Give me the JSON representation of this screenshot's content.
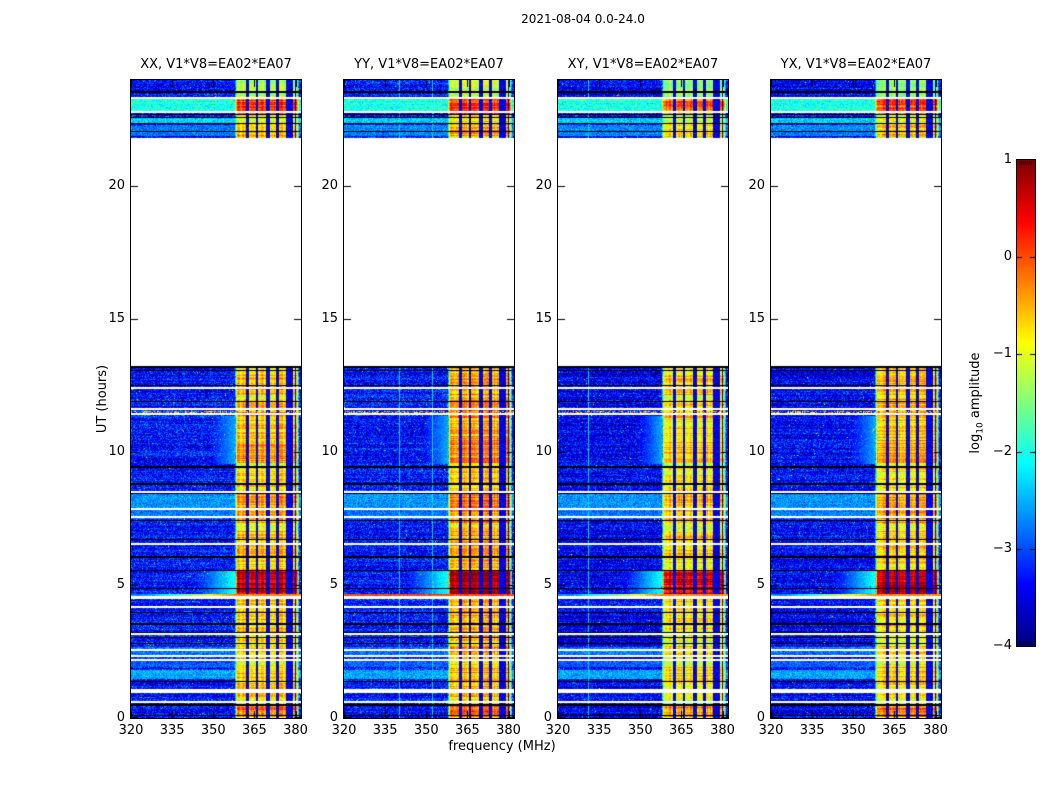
{
  "chart_data": {
    "type": "heatmap",
    "subtype": "dynamic-spectrum-spectrogram",
    "title": "2021-08-04 0.0-24.0",
    "xlabel": "frequency (MHz)",
    "ylabel": "UT (hours)",
    "x_range_mhz": [
      320,
      382
    ],
    "y_range_hours": [
      0,
      24
    ],
    "x_ticks": [
      "320",
      "335",
      "350",
      "365",
      "380"
    ],
    "y_ticks": [
      "0",
      "5",
      "10",
      "15",
      "20"
    ],
    "grid": false,
    "colormap": "jet",
    "colorbar": {
      "label": "log10 amplitude",
      "label_pre": "log",
      "label_sub": "10",
      "label_post": " amplitude",
      "range": [
        -4,
        1
      ],
      "ticks": [
        1,
        0,
        -1,
        -2,
        -3,
        -4
      ],
      "tick_labels": [
        "1",
        "0",
        "−1",
        "−2",
        "−3",
        "−4"
      ]
    },
    "panels": [
      {
        "id": "XX",
        "title": "XX, V1*V8=EA02*EA07",
        "seed": 11,
        "base_amp": -3.3,
        "band_offset": 0,
        "event_full": false,
        "bright_vlines_mhz": []
      },
      {
        "id": "YY",
        "title": "YY, V1*V8=EA02*EA07",
        "seed": 22,
        "base_amp": -3.3,
        "band_offset": 0.15,
        "event_full": true,
        "bright_vlines_mhz": [
          340,
          352
        ]
      },
      {
        "id": "XY",
        "title": "XY, V1*V8=EA02*EA07",
        "seed": 33,
        "base_amp": -3.45,
        "band_offset": -0.12,
        "event_full": false,
        "bright_vlines_mhz": [
          331
        ]
      },
      {
        "id": "YX",
        "title": "YX, V1*V8=EA02*EA07",
        "seed": 44,
        "base_amp": -3.4,
        "band_offset": -0.05,
        "event_full": false,
        "bright_vlines_mhz": []
      }
    ],
    "features": {
      "data_gap_hours": [
        13.25,
        21.82
      ],
      "rfi_band": {
        "start_mhz": 357.8,
        "end_mhz": 381.4,
        "base_amp": -0.95,
        "notches_mhz": [
          [
            362.5,
            1.0
          ],
          [
            365.9,
            0.8
          ],
          [
            369.9,
            1.3
          ],
          [
            373.4,
            0.8
          ],
          [
            377.8,
            2.2
          ],
          [
            379.9,
            0.5
          ]
        ]
      },
      "band_boost_intervals": [
        [
          4.68,
          5.52,
          1.6
        ],
        [
          9.6,
          10.45,
          0.5
        ],
        [
          12.15,
          12.9,
          0.4
        ],
        [
          22.72,
          23.28,
          0.95
        ],
        [
          0.05,
          0.5,
          0.75
        ],
        [
          7.35,
          8.45,
          0.5
        ],
        [
          11.3,
          12.0,
          0.45
        ],
        [
          6.1,
          7.05,
          0.35
        ],
        [
          2.2,
          2.7,
          0.3
        ],
        [
          1.4,
          1.9,
          0.3
        ],
        [
          21.85,
          22.35,
          0.4
        ],
        [
          23.3,
          24.0,
          -0.3
        ],
        [
          2.9,
          3.5,
          0.25
        ],
        [
          0.8,
          1.35,
          0.25
        ],
        [
          3.6,
          4.5,
          0.3
        ],
        [
          5.55,
          6.05,
          0.25
        ],
        [
          8.5,
          9.45,
          0.2
        ],
        [
          10.5,
          11.25,
          0.3
        ],
        [
          12.95,
          13.25,
          0.2
        ]
      ],
      "event": {
        "hour": 4.62,
        "thickness_hours": 0.1
      },
      "speckled_line_hour": 11.52,
      "white_gaps": [
        [
          23.32,
          2
        ],
        [
          22.78,
          2
        ],
        [
          12.42,
          2
        ],
        [
          11.62,
          2
        ],
        [
          11.42,
          2
        ],
        [
          8.52,
          2
        ],
        [
          7.86,
          2
        ],
        [
          7.55,
          2
        ],
        [
          6.56,
          2
        ],
        [
          4.52,
          3
        ],
        [
          4.17,
          2
        ],
        [
          3.15,
          2
        ],
        [
          2.56,
          2
        ],
        [
          2.32,
          2
        ],
        [
          2.18,
          2
        ],
        [
          1.02,
          4
        ],
        [
          0.62,
          2
        ]
      ],
      "black_lines": [
        [
          23.55,
          2
        ],
        [
          22.7,
          1
        ],
        [
          22.58,
          1
        ],
        [
          22.35,
          1
        ],
        [
          22.05,
          1
        ],
        [
          13.22,
          2
        ],
        [
          13.06,
          1
        ],
        [
          12.52,
          1
        ],
        [
          11.9,
          1
        ],
        [
          9.46,
          2
        ],
        [
          8.8,
          2
        ],
        [
          8.44,
          1
        ],
        [
          7.42,
          1
        ],
        [
          6.7,
          1
        ],
        [
          6.05,
          2
        ],
        [
          5.56,
          1
        ],
        [
          4.86,
          1
        ],
        [
          3.95,
          1
        ],
        [
          3.55,
          2
        ],
        [
          3.22,
          1
        ],
        [
          3.04,
          1
        ],
        [
          2.8,
          1
        ],
        [
          1.36,
          1
        ],
        [
          0.5,
          2
        ],
        [
          0.1,
          1
        ]
      ],
      "cyan_bands": [
        [
          22.82,
          23.28,
          -2.0
        ],
        [
          22.4,
          22.56,
          -2.35
        ],
        [
          21.9,
          22.3,
          -2.75
        ],
        [
          7.9,
          8.42,
          -2.65
        ],
        [
          7.48,
          7.82,
          -2.8
        ],
        [
          2.36,
          2.66,
          -2.8
        ],
        [
          1.9,
          2.2,
          -2.95
        ],
        [
          1.46,
          1.8,
          -2.55
        ]
      ],
      "smudges": [
        [
          4.62,
          5.55,
          -2.05,
          14
        ],
        [
          9.55,
          11.35,
          -2.55,
          8
        ]
      ]
    }
  }
}
